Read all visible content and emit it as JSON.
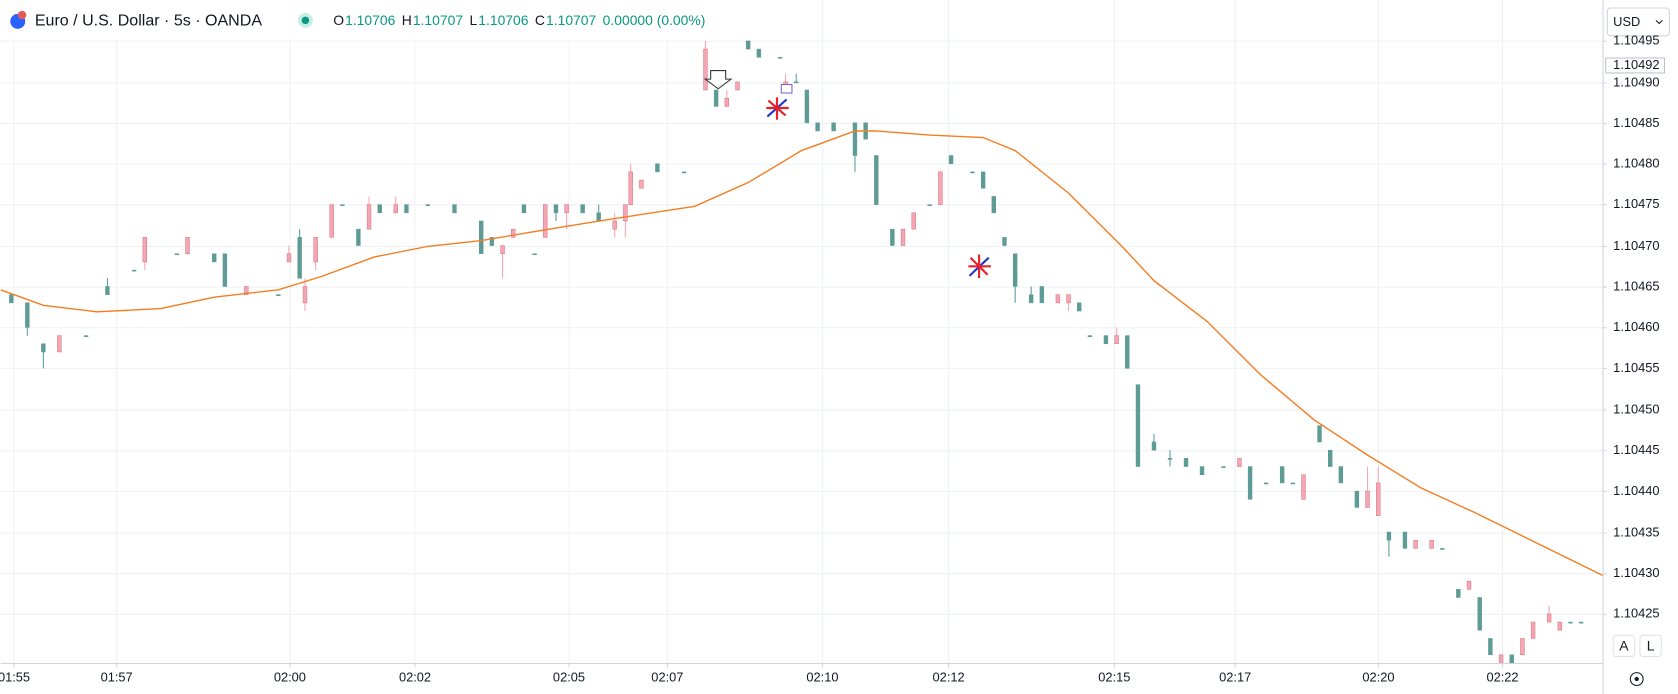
{
  "chart_data": {
    "type": "candlestick",
    "title": "Euro / U.S. Dollar · 5s · OANDA",
    "ohlc_labels": [
      "O",
      "H",
      "L",
      "C"
    ],
    "ohlc_values": [
      "1.10706",
      "1.10707",
      "1.10706",
      "1.10707"
    ],
    "change": "0.00000 (0.00%)",
    "currency": "USD",
    "buttons": [
      "A",
      "L"
    ],
    "last_price": 1.10492,
    "up_color": "#f2a7b3",
    "down_color": "#5e9b96",
    "ma_color": "#f57c1f",
    "grid": true,
    "xlim": [
      0,
      300
    ],
    "xticks": [
      {
        "value": 2.4,
        "label": "01:55"
      },
      {
        "value": 21.6,
        "label": "01:57"
      },
      {
        "value": 54,
        "label": "02:00"
      },
      {
        "value": 77.6,
        "label": "02:02"
      },
      {
        "value": 106.4,
        "label": "02:05"
      },
      {
        "value": 124.8,
        "label": "02:07"
      },
      {
        "value": 153.8,
        "label": "02:10"
      },
      {
        "value": 177.4,
        "label": "02:12"
      },
      {
        "value": 208.4,
        "label": "02:15"
      },
      {
        "value": 231.2,
        "label": "02:17"
      },
      {
        "value": 258,
        "label": "02:20"
      },
      {
        "value": 281.2,
        "label": "02:22"
      }
    ],
    "ylim": [
      1.10419,
      1.105
    ],
    "yticks": [
      1.10425,
      {
        "value": 1.1043,
        "label": "1.10430"
      },
      1.10435,
      {
        "value": 1.1044,
        "label": "1.10440"
      },
      1.10445,
      {
        "value": 1.1045,
        "label": "1.10450"
      },
      1.10455,
      {
        "value": 1.1046,
        "label": "1.10460"
      },
      1.10465,
      {
        "value": 1.1047,
        "label": "1.10470"
      },
      1.10475,
      {
        "value": 1.1048,
        "label": "1.10480"
      },
      1.10485,
      {
        "value": 1.1049,
        "label": "1.10490"
      },
      1.10495
    ],
    "x": [
      2,
      5,
      8,
      11,
      16,
      20,
      25,
      27,
      33,
      35,
      40,
      42,
      46,
      52,
      54,
      56,
      57,
      59,
      62,
      64,
      67,
      69,
      71,
      74,
      76,
      80,
      85,
      90,
      92,
      94,
      96,
      98,
      100,
      102,
      104,
      106,
      109,
      112,
      115,
      117,
      118,
      120,
      123,
      128,
      132,
      134,
      136,
      138,
      140,
      142,
      146,
      147,
      149,
      151,
      153,
      156,
      160,
      162,
      164,
      167,
      169,
      171,
      174,
      176,
      178,
      182,
      184,
      186,
      188,
      190,
      193,
      195,
      198,
      200,
      202,
      204,
      207,
      209,
      211,
      213,
      216,
      219,
      222,
      225,
      229,
      232,
      234,
      237,
      240,
      242,
      244,
      247,
      249,
      251,
      254,
      256,
      258,
      260,
      263,
      265,
      268,
      270,
      273,
      275,
      277,
      279,
      281,
      283,
      285,
      287,
      290,
      292,
      294,
      296
    ],
    "open": [
      1.10464,
      1.10463,
      1.10458,
      1.10457,
      1.10459,
      1.10465,
      1.10467,
      1.10468,
      1.10469,
      1.10469,
      1.10469,
      1.10469,
      1.10464,
      1.10464,
      1.10468,
      1.10471,
      1.10463,
      1.10468,
      1.10471,
      1.10475,
      1.10472,
      1.10472,
      1.10475,
      1.10474,
      1.10475,
      1.10475,
      1.10475,
      1.10473,
      1.10471,
      1.10469,
      1.10471,
      1.10475,
      1.10469,
      1.10471,
      1.10475,
      1.10474,
      1.10475,
      1.10474,
      1.10472,
      1.10473,
      1.10475,
      1.10477,
      1.1048,
      1.10479,
      1.10489,
      1.10489,
      1.10487,
      1.10489,
      1.10495,
      1.10494,
      1.10493,
      1.10489,
      1.1049,
      1.10489,
      1.10485,
      1.10485,
      1.10485,
      1.10485,
      1.10481,
      1.10472,
      1.1047,
      1.10472,
      1.10475,
      1.10475,
      1.10481,
      1.10479,
      1.10479,
      1.10476,
      1.10471,
      1.10469,
      1.10464,
      1.10465,
      1.10463,
      1.10463,
      1.10463,
      1.10459,
      1.10459,
      1.10458,
      1.10459,
      1.10453,
      1.10446,
      1.10444,
      1.10444,
      1.10443,
      1.10443,
      1.10443,
      1.10443,
      1.10441,
      1.10443,
      1.10441,
      1.10439,
      1.10448,
      1.10445,
      1.10443,
      1.1044,
      1.10438,
      1.10437,
      1.10435,
      1.10435,
      1.10433,
      1.10433,
      1.10433,
      1.10428,
      1.10428,
      1.10427,
      1.10422,
      1.10419,
      1.1042,
      1.1042,
      1.10422,
      1.10424,
      1.10423,
      1.10424,
      1.10424
    ],
    "high": [
      1.10464,
      1.10463,
      1.10458,
      1.10459,
      1.10459,
      1.10466,
      1.10467,
      1.10471,
      1.10469,
      1.10471,
      1.10469,
      1.10469,
      1.10465,
      1.10464,
      1.1047,
      1.10472,
      1.10466,
      1.10471,
      1.10475,
      1.10475,
      1.10472,
      1.10476,
      1.10475,
      1.10476,
      1.10475,
      1.10475,
      1.10475,
      1.10473,
      1.10471,
      1.1047,
      1.10472,
      1.10475,
      1.10469,
      1.10475,
      1.10475,
      1.10475,
      1.10475,
      1.10475,
      1.10474,
      1.10475,
      1.1048,
      1.10478,
      1.1048,
      1.10479,
      1.10495,
      1.10489,
      1.10489,
      1.1049,
      1.10495,
      1.10494,
      1.10493,
      1.10491,
      1.10491,
      1.10489,
      1.10485,
      1.10485,
      1.10485,
      1.10485,
      1.10481,
      1.10472,
      1.10472,
      1.10474,
      1.10475,
      1.10479,
      1.10481,
      1.10479,
      1.10479,
      1.10476,
      1.10471,
      1.10469,
      1.10465,
      1.10465,
      1.10464,
      1.10464,
      1.10463,
      1.10459,
      1.10459,
      1.1046,
      1.10459,
      1.10453,
      1.10447,
      1.10445,
      1.10444,
      1.10443,
      1.10443,
      1.10444,
      1.10443,
      1.10441,
      1.10443,
      1.10441,
      1.10442,
      1.10448,
      1.10445,
      1.10443,
      1.1044,
      1.10443,
      1.10443,
      1.10435,
      1.10435,
      1.10434,
      1.10434,
      1.10433,
      1.10428,
      1.10429,
      1.10427,
      1.10422,
      1.1042,
      1.1042,
      1.10422,
      1.10424,
      1.10426,
      1.10424,
      1.10424,
      1.10424
    ],
    "low": [
      1.10463,
      1.10459,
      1.10455,
      1.10457,
      1.10459,
      1.10464,
      1.10467,
      1.10467,
      1.10469,
      1.10469,
      1.10468,
      1.10465,
      1.10464,
      1.10464,
      1.10468,
      1.10466,
      1.10462,
      1.10467,
      1.10471,
      1.10475,
      1.1047,
      1.10472,
      1.10474,
      1.10474,
      1.10474,
      1.10475,
      1.10474,
      1.10469,
      1.1047,
      1.10466,
      1.10471,
      1.10474,
      1.10469,
      1.10471,
      1.10473,
      1.10472,
      1.10474,
      1.10473,
      1.10471,
      1.10471,
      1.10475,
      1.10477,
      1.10479,
      1.10479,
      1.10489,
      1.10487,
      1.10487,
      1.10489,
      1.10494,
      1.10493,
      1.10493,
      1.10489,
      1.1049,
      1.10485,
      1.10484,
      1.10484,
      1.10479,
      1.10483,
      1.10475,
      1.1047,
      1.1047,
      1.10472,
      1.10475,
      1.10475,
      1.1048,
      1.10479,
      1.10477,
      1.10474,
      1.1047,
      1.10463,
      1.10463,
      1.10463,
      1.10463,
      1.10462,
      1.10462,
      1.10459,
      1.10458,
      1.10458,
      1.10455,
      1.10443,
      1.10445,
      1.10443,
      1.10443,
      1.10442,
      1.10443,
      1.10443,
      1.10439,
      1.10441,
      1.10441,
      1.10441,
      1.10439,
      1.10446,
      1.10443,
      1.10441,
      1.10438,
      1.10438,
      1.10437,
      1.10432,
      1.10433,
      1.10433,
      1.10433,
      1.10433,
      1.10427,
      1.10428,
      1.10423,
      1.1042,
      1.10419,
      1.10419,
      1.1042,
      1.10422,
      1.10424,
      1.10423,
      1.10424,
      1.10424
    ],
    "close": [
      1.10463,
      1.1046,
      1.10457,
      1.10459,
      1.10459,
      1.10464,
      1.10467,
      1.10471,
      1.10469,
      1.10471,
      1.10468,
      1.10465,
      1.10465,
      1.10464,
      1.10469,
      1.10466,
      1.10465,
      1.10471,
      1.10475,
      1.10475,
      1.1047,
      1.10475,
      1.10474,
      1.10475,
      1.10474,
      1.10475,
      1.10474,
      1.10469,
      1.1047,
      1.1047,
      1.10472,
      1.10474,
      1.10469,
      1.10475,
      1.10474,
      1.10475,
      1.10474,
      1.10473,
      1.10473,
      1.10475,
      1.10479,
      1.10478,
      1.10479,
      1.10479,
      1.10494,
      1.10487,
      1.10488,
      1.1049,
      1.10494,
      1.10493,
      1.10493,
      1.1049,
      1.1049,
      1.10485,
      1.10484,
      1.10484,
      1.10481,
      1.10483,
      1.10475,
      1.1047,
      1.10472,
      1.10474,
      1.10475,
      1.10479,
      1.1048,
      1.10479,
      1.10477,
      1.10474,
      1.1047,
      1.10465,
      1.10463,
      1.10463,
      1.10464,
      1.10464,
      1.10462,
      1.10459,
      1.10458,
      1.10459,
      1.10455,
      1.10443,
      1.10445,
      1.10444,
      1.10443,
      1.10442,
      1.10443,
      1.10444,
      1.10439,
      1.10441,
      1.10441,
      1.10441,
      1.10442,
      1.10446,
      1.10443,
      1.10441,
      1.10438,
      1.1044,
      1.10441,
      1.10434,
      1.10433,
      1.10434,
      1.10434,
      1.10433,
      1.10427,
      1.10429,
      1.10423,
      1.1042,
      1.1042,
      1.10419,
      1.10422,
      1.10424,
      1.10425,
      1.10424,
      1.10424,
      1.10424
    ],
    "ma_x": [
      0,
      8,
      18,
      30,
      40,
      52,
      60,
      70,
      80,
      90,
      100,
      112,
      130,
      140,
      150,
      160,
      164,
      174,
      184,
      190,
      200,
      210,
      216,
      226,
      236,
      246,
      256,
      266,
      276,
      286,
      300
    ],
    "ma_values": [
      1.104646,
      1.104627,
      1.104619,
      1.104623,
      1.104637,
      1.104646,
      1.104662,
      1.104686,
      1.104699,
      1.104706,
      1.104717,
      1.10473,
      1.104748,
      1.104777,
      1.104816,
      1.10484,
      1.10484,
      1.104835,
      1.104832,
      1.104816,
      1.104764,
      1.104699,
      1.104657,
      1.104607,
      1.104542,
      1.104487,
      1.104444,
      1.104404,
      1.104374,
      1.104342,
      1.104297
    ]
  }
}
